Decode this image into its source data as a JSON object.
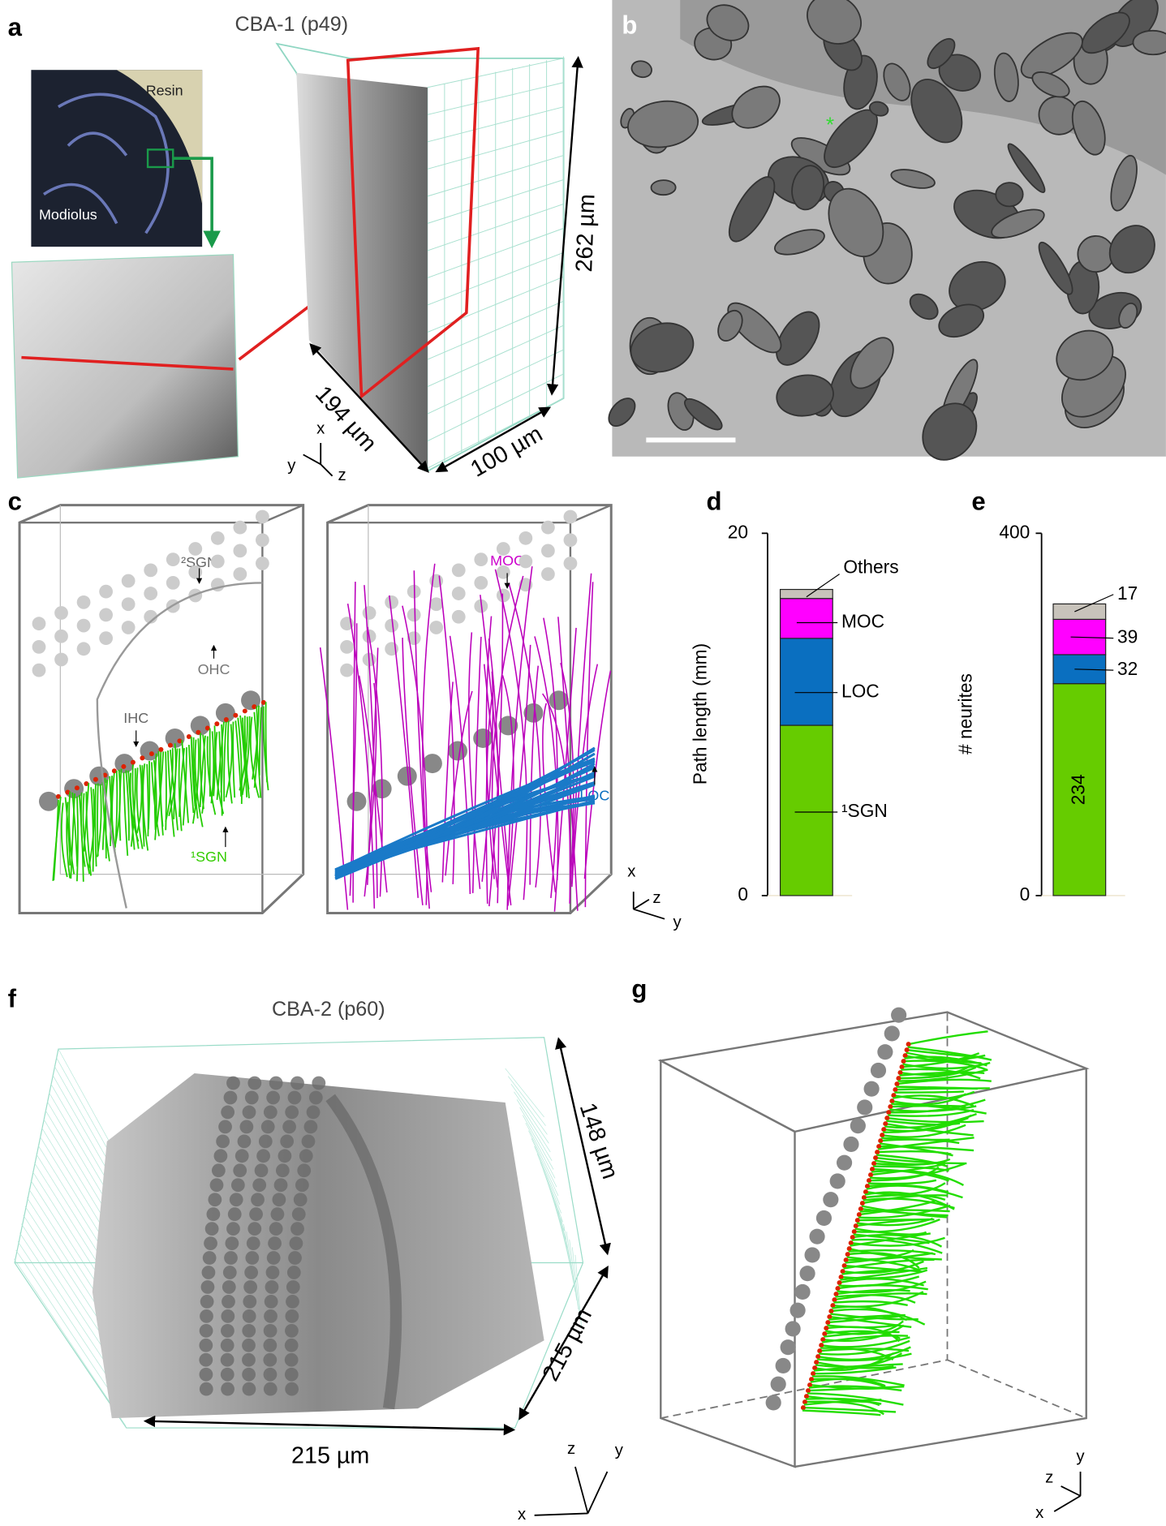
{
  "panel_a": {
    "label": "a",
    "title": "CBA-1 (p49)",
    "inset_top": "Resin",
    "inset_bottom": "Modiolus",
    "dim_1": "194 µm",
    "dim_2": "100 µm",
    "dim_3": "262 µm",
    "axes": [
      "x",
      "y",
      "z"
    ]
  },
  "panel_b": {
    "label": "b"
  },
  "panel_c": {
    "label": "c",
    "left_labels": [
      "²SGN",
      "OHC",
      "IHC",
      "¹SGN"
    ],
    "right_labels": [
      "MOC",
      "LOC"
    ],
    "axes": [
      "x",
      "z",
      "y"
    ]
  },
  "panel_f": {
    "label": "f",
    "title": "CBA-2 (p60)",
    "dim_1": "148 µm",
    "dim_2": "215 µm",
    "dim_3": "215 µm",
    "axes": [
      "z",
      "y",
      "x"
    ]
  },
  "panel_g": {
    "label": "g",
    "axes": [
      "y",
      "z",
      "x"
    ]
  },
  "chart_data": [
    {
      "type": "bar",
      "label": "d",
      "stacked": true,
      "y_label": "Path length (mm)",
      "ylim": [
        0,
        20
      ],
      "yticks": [
        0,
        20
      ],
      "series": [
        {
          "name": "¹SGN",
          "color": "#66cc00",
          "values": [
            9.4
          ]
        },
        {
          "name": "LOC",
          "color": "#0a6fc0",
          "values": [
            4.8
          ]
        },
        {
          "name": "MOC",
          "color": "#ff00ff",
          "values": [
            2.2
          ]
        },
        {
          "name": "Others",
          "color": "#c8c3bb",
          "values": [
            0.5
          ]
        }
      ]
    },
    {
      "type": "bar",
      "label": "e",
      "stacked": true,
      "y_label": "# neurites",
      "ylim": [
        0,
        400
      ],
      "yticks": [
        0,
        400
      ],
      "series": [
        {
          "color": "#66cc00",
          "values": [
            234
          ]
        },
        {
          "color": "#0a6fc0",
          "values": [
            32
          ]
        },
        {
          "color": "#ff00ff",
          "values": [
            39
          ]
        },
        {
          "color": "#c8c3bb",
          "values": [
            17
          ]
        }
      ]
    }
  ]
}
